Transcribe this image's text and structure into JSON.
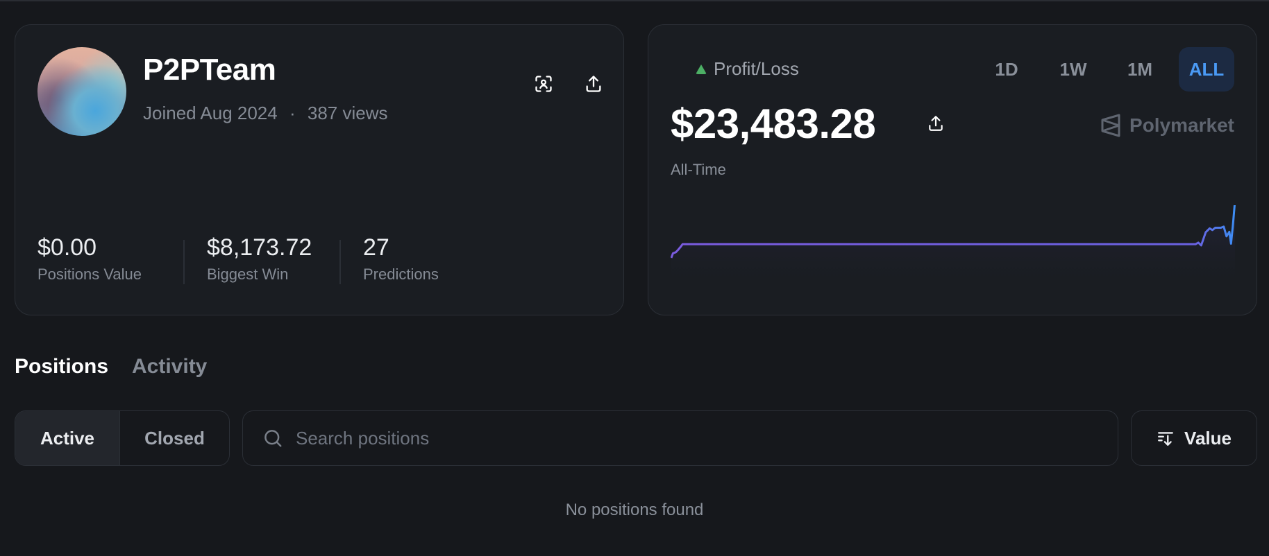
{
  "profile": {
    "username": "P2PTeam",
    "joined": "Joined Aug 2024",
    "separator": "·",
    "views": "387 views",
    "icons": [
      "face-scan-icon",
      "share-icon"
    ],
    "stats": [
      {
        "value": "$0.00",
        "label": "Positions Value"
      },
      {
        "value": "$8,173.72",
        "label": "Biggest Win"
      },
      {
        "value": "27",
        "label": "Predictions"
      }
    ]
  },
  "pnl": {
    "label": "Profit/Loss",
    "amount": "$23,483.28",
    "period_label": "All-Time",
    "brand": "Polymarket",
    "timeframes": [
      "1D",
      "1W",
      "1M",
      "ALL"
    ],
    "active_timeframe": "ALL",
    "colors": {
      "up": "#4caf65",
      "line_start": "#7b5ce0",
      "line_end": "#3d8ef5",
      "active": "#4a9af5"
    },
    "curve": {
      "note_units": "relative level",
      "points": [
        [
          0,
          0
        ],
        [
          0.003,
          8
        ],
        [
          0.008,
          10
        ],
        [
          0.012,
          14
        ],
        [
          0.017,
          20
        ],
        [
          0.02,
          24
        ],
        [
          0.45,
          24
        ],
        [
          0.93,
          24
        ],
        [
          0.935,
          27
        ],
        [
          0.94,
          22
        ],
        [
          0.948,
          45
        ],
        [
          0.955,
          52
        ],
        [
          0.96,
          49
        ],
        [
          0.965,
          53
        ],
        [
          0.975,
          53
        ],
        [
          0.98,
          55
        ],
        [
          0.985,
          38
        ],
        [
          0.99,
          46
        ],
        [
          0.993,
          25
        ],
        [
          0.996,
          55
        ],
        [
          1,
          100
        ]
      ]
    }
  },
  "tabs": [
    {
      "label": "Positions",
      "active": true
    },
    {
      "label": "Activity",
      "active": false
    }
  ],
  "filters": {
    "segments": [
      "Active",
      "Closed"
    ],
    "selected": "Active",
    "search_placeholder": "Search positions",
    "search_value": "",
    "sort_label": "Value"
  },
  "empty_message": "No positions found"
}
